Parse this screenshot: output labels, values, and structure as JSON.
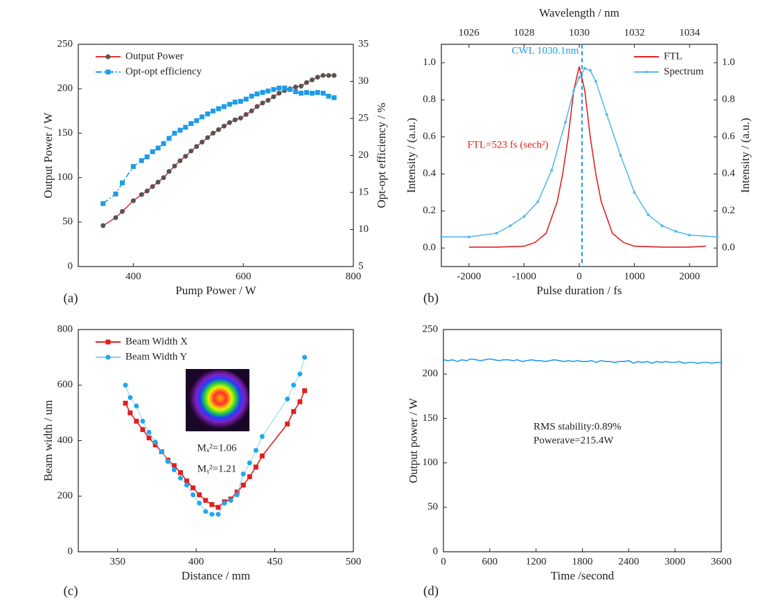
{
  "chart_data": [
    {
      "type": "line",
      "label": "(a)",
      "xlabel": "Pump Power / W",
      "ylabel": "Output Power / W",
      "y2label": "Opt-opt efficiency / %",
      "xlim": [
        300,
        800
      ],
      "xticks": [
        400,
        600,
        800
      ],
      "ylim": [
        0,
        250
      ],
      "yticks": [
        0,
        50,
        100,
        150,
        200,
        250
      ],
      "y2lim": [
        5,
        35
      ],
      "y2ticks": [
        5,
        10,
        15,
        20,
        25,
        30,
        35
      ],
      "legend": "upper left",
      "series": [
        {
          "name": "Output Power",
          "color": "#555555",
          "line_color": "#e03030",
          "marker": "circle",
          "x": [
            345,
            368,
            380,
            400,
            415,
            425,
            435,
            445,
            455,
            465,
            475,
            485,
            495,
            505,
            515,
            525,
            535,
            545,
            555,
            565,
            575,
            585,
            595,
            605,
            615,
            625,
            635,
            645,
            655,
            665,
            675,
            685,
            695,
            705,
            715,
            725,
            735,
            745,
            755,
            765
          ],
          "values": [
            46,
            55,
            62,
            74,
            81,
            85,
            90,
            95,
            100,
            107,
            113,
            119,
            124,
            130,
            135,
            140,
            145,
            150,
            154,
            158,
            162,
            165,
            167,
            171,
            175,
            180,
            184,
            187,
            191,
            195,
            198,
            200,
            202,
            203,
            207,
            210,
            213,
            215,
            215,
            215
          ]
        },
        {
          "name": "Opt-opt efficiency",
          "color": "#1e9be6",
          "line_color": "#1e9be6",
          "marker": "square",
          "dash": "dash-dot",
          "axis": "y2",
          "x": [
            345,
            368,
            380,
            400,
            415,
            425,
            435,
            445,
            455,
            465,
            475,
            485,
            495,
            505,
            515,
            525,
            535,
            545,
            555,
            565,
            575,
            585,
            595,
            605,
            615,
            625,
            635,
            645,
            655,
            665,
            675,
            685,
            695,
            705,
            715,
            725,
            735,
            745,
            755,
            765
          ],
          "values": [
            13.5,
            14.8,
            16.3,
            18.5,
            19.3,
            19.8,
            20.5,
            21,
            21.6,
            22.3,
            23,
            23.4,
            23.8,
            24.3,
            24.7,
            25.2,
            25.6,
            26,
            26.3,
            26.6,
            26.9,
            27.2,
            27.3,
            27.6,
            28,
            28.3,
            28.5,
            28.7,
            28.9,
            29.1,
            29.1,
            28.9,
            28.6,
            28.4,
            28.5,
            28.4,
            28.5,
            28.4,
            28,
            27.8
          ]
        }
      ]
    },
    {
      "type": "line",
      "label": "(b)",
      "xlabel": "Pulse duration / fs",
      "x2label": "Wavelength / nm",
      "ylabel": "Intensity / (a.u.)",
      "y2label": "Intensity / (a.u.)",
      "xlim": [
        -2500,
        2500
      ],
      "xticks": [
        -2000,
        -1000,
        0,
        1000,
        2000
      ],
      "x2lim": [
        1025,
        1035
      ],
      "x2ticks": [
        1026,
        1028,
        1030,
        1032,
        1034
      ],
      "ylim": [
        -0.1,
        1.1
      ],
      "yticks": [
        {
          "value": 0,
          "label": "0.0"
        },
        {
          "value": 0.2,
          "label": "0.2"
        },
        {
          "value": 0.4,
          "label": "0.4"
        },
        {
          "value": 0.6,
          "label": "0.6"
        },
        {
          "value": 0.8,
          "label": "0.8"
        },
        {
          "value": 1,
          "label": "1.0"
        }
      ],
      "y2lim": [
        -0.1,
        1.1
      ],
      "y2ticks": [
        {
          "value": 0,
          "label": "0.0"
        },
        {
          "value": 0.2,
          "label": "0.2"
        },
        {
          "value": 0.4,
          "label": "0.4"
        },
        {
          "value": 0.6,
          "label": "0.6"
        },
        {
          "value": 0.8,
          "label": "0.8"
        },
        {
          "value": 1,
          "label": "1.0"
        }
      ],
      "legend": "upper right",
      "cwl": 1030.1,
      "cwl_color": "#1e9be6",
      "annotations": [
        {
          "text": "CWL 1030.1nm",
          "color": "#1e9be6"
        },
        {
          "text": "FTL=523 fs (sech²)",
          "color": "#e02020"
        }
      ],
      "series": [
        {
          "name": "FTL",
          "color": "#e02020",
          "line_color": "#e02020",
          "x": [
            -2000,
            -1500,
            -1000,
            -800,
            -600,
            -400,
            -300,
            -200,
            -100,
            0,
            100,
            200,
            300,
            400,
            600,
            800,
            1000,
            1500,
            2000,
            2300
          ],
          "values": [
            0.005,
            0.005,
            0.01,
            0.03,
            0.08,
            0.25,
            0.4,
            0.6,
            0.85,
            0.98,
            0.85,
            0.6,
            0.4,
            0.25,
            0.08,
            0.03,
            0.01,
            0.005,
            0.005,
            0.01
          ]
        },
        {
          "name": "Spectrum",
          "color": "#5ab8ee",
          "line_color": "#5ab8ee",
          "marker": "dot",
          "axis": "x2",
          "x": [
            1025,
            1026,
            1027,
            1027.5,
            1028,
            1028.5,
            1029,
            1029.5,
            1029.8,
            1030,
            1030.2,
            1030.4,
            1030.6,
            1031,
            1031.5,
            1032,
            1032.5,
            1033,
            1033.5,
            1034,
            1035
          ],
          "values": [
            0.06,
            0.06,
            0.08,
            0.12,
            0.17,
            0.25,
            0.42,
            0.68,
            0.85,
            0.92,
            0.97,
            0.96,
            0.9,
            0.72,
            0.5,
            0.3,
            0.18,
            0.12,
            0.09,
            0.07,
            0.06
          ]
        }
      ]
    },
    {
      "type": "line",
      "label": "(c)",
      "xlabel": "Distance / mm",
      "ylabel": "Beam width / um",
      "xlim": [
        325,
        500
      ],
      "xticks": [
        350,
        400,
        450,
        500
      ],
      "ylim": [
        0,
        800
      ],
      "yticks": [
        0,
        200,
        400,
        600,
        800
      ],
      "legend": "upper left",
      "annotations": [
        {
          "text": "Mₓ²=1.06",
          "color": "#222222"
        },
        {
          "text": "Mᵧ²=1.21",
          "color": "#222222"
        }
      ],
      "series": [
        {
          "name": "Beam Width X",
          "color": "#e02020",
          "line_color": "#e02020",
          "marker": "square",
          "x": [
            355,
            358,
            362,
            366,
            370,
            374,
            378,
            382,
            386,
            390,
            394,
            398,
            402,
            406,
            410,
            414,
            418,
            422,
            426,
            430,
            434,
            438,
            442,
            458,
            462,
            466,
            469
          ],
          "values": [
            535,
            500,
            470,
            440,
            410,
            385,
            360,
            330,
            310,
            285,
            255,
            230,
            205,
            185,
            170,
            160,
            180,
            190,
            215,
            240,
            270,
            305,
            345,
            460,
            505,
            540,
            580
          ]
        },
        {
          "name": "Beam Width Y",
          "color": "#1ea8ee",
          "line_color": "#8ccdf2",
          "marker": "circle",
          "x": [
            355,
            358,
            362,
            366,
            370,
            374,
            378,
            382,
            386,
            390,
            394,
            398,
            402,
            406,
            410,
            414,
            418,
            422,
            426,
            430,
            434,
            438,
            442,
            458,
            462,
            466,
            469
          ],
          "values": [
            600,
            555,
            525,
            470,
            430,
            395,
            360,
            325,
            295,
            265,
            240,
            205,
            175,
            145,
            135,
            135,
            175,
            185,
            205,
            280,
            320,
            365,
            415,
            550,
            600,
            640,
            700
          ]
        }
      ]
    },
    {
      "type": "line",
      "label": "(d)",
      "xlabel": "Time /second",
      "ylabel": "Output power / W",
      "xlim": [
        0,
        3600
      ],
      "xticks": [
        0,
        600,
        1200,
        1800,
        2400,
        3000,
        3600
      ],
      "ylim": [
        0,
        250
      ],
      "yticks": [
        0,
        50,
        100,
        150,
        200,
        250
      ],
      "annotations": [
        {
          "text": "RMS stability:0.89%",
          "color": "#222222"
        },
        {
          "text": "Powerave=215.4W",
          "color": "#222222"
        }
      ],
      "series": [
        {
          "color": "#1e9be6",
          "line_color": "#1e9be6",
          "x": [
            0,
            60,
            120,
            180,
            240,
            300,
            360,
            420,
            480,
            540,
            600,
            660,
            720,
            780,
            840,
            900,
            960,
            1020,
            1080,
            1140,
            1200,
            1260,
            1320,
            1380,
            1440,
            1500,
            1560,
            1620,
            1680,
            1740,
            1800,
            1860,
            1920,
            1980,
            2040,
            2100,
            2160,
            2220,
            2280,
            2340,
            2400,
            2460,
            2520,
            2580,
            2640,
            2700,
            2760,
            2820,
            2880,
            2940,
            3000,
            3060,
            3120,
            3180,
            3240,
            3300,
            3360,
            3420,
            3480,
            3540,
            3600
          ],
          "values": [
            216,
            215,
            216,
            214,
            216,
            215,
            217,
            216,
            215,
            216,
            217,
            216,
            215,
            216,
            216,
            215,
            216,
            214,
            215,
            216,
            215,
            215,
            214,
            215,
            216,
            215,
            214,
            215,
            214,
            215,
            214,
            214,
            215,
            213,
            215,
            214,
            214,
            213,
            214,
            214,
            215,
            212,
            214,
            213,
            214,
            212,
            214,
            213,
            214,
            213,
            213,
            214,
            212,
            213,
            213,
            212,
            213,
            213,
            212,
            213,
            213
          ]
        }
      ]
    }
  ]
}
